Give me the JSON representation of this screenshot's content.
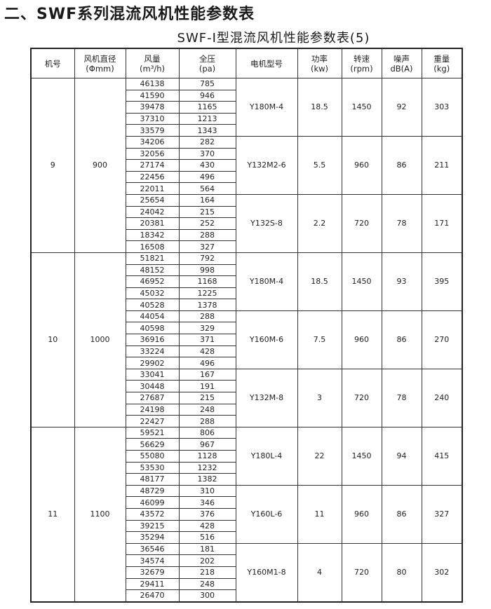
{
  "heading": "二、SWF系列混流风机性能参数表",
  "subheading": "SWF-Ⅰ型混流风机性能参数表(5)",
  "columns": [
    {
      "line1": "机号",
      "line2": ""
    },
    {
      "line1": "风机直径",
      "line2": "(Φmm)"
    },
    {
      "line1": "风量",
      "line2": "(m³/h)"
    },
    {
      "line1": "全压",
      "line2": "(pa)"
    },
    {
      "line1": "电机型号",
      "line2": ""
    },
    {
      "line1": "功率",
      "line2": "(kw)"
    },
    {
      "line1": "转速",
      "line2": "(rpm)"
    },
    {
      "line1": "噪声",
      "line2": "dB(A)"
    },
    {
      "line1": "重量",
      "line2": "(kg)"
    }
  ],
  "fans": [
    {
      "number": "9",
      "diameter": "900",
      "motors": [
        {
          "model": "Y180M-4",
          "power": "18.5",
          "speed": "1450",
          "noise": "92",
          "weight": "303",
          "points": [
            [
              "46138",
              "785"
            ],
            [
              "41590",
              "946"
            ],
            [
              "39478",
              "1165"
            ],
            [
              "37310",
              "1213"
            ],
            [
              "33579",
              "1343"
            ]
          ]
        },
        {
          "model": "Y132M2-6",
          "power": "5.5",
          "speed": "960",
          "noise": "86",
          "weight": "211",
          "points": [
            [
              "34206",
              "282"
            ],
            [
              "32056",
              "370"
            ],
            [
              "27174",
              "430"
            ],
            [
              "22456",
              "496"
            ],
            [
              "22011",
              "564"
            ]
          ]
        },
        {
          "model": "Y132S-8",
          "power": "2.2",
          "speed": "720",
          "noise": "78",
          "weight": "171",
          "points": [
            [
              "25654",
              "164"
            ],
            [
              "24042",
              "215"
            ],
            [
              "20381",
              "252"
            ],
            [
              "18342",
              "288"
            ],
            [
              "16508",
              "327"
            ]
          ]
        }
      ]
    },
    {
      "number": "10",
      "diameter": "1000",
      "motors": [
        {
          "model": "Y180M-4",
          "power": "18.5",
          "speed": "1450",
          "noise": "93",
          "weight": "395",
          "points": [
            [
              "51821",
              "792"
            ],
            [
              "48152",
              "998"
            ],
            [
              "46952",
              "1168"
            ],
            [
              "45032",
              "1225"
            ],
            [
              "40528",
              "1378"
            ]
          ]
        },
        {
          "model": "Y160M-6",
          "power": "7.5",
          "speed": "960",
          "noise": "86",
          "weight": "270",
          "points": [
            [
              "44054",
              "288"
            ],
            [
              "40598",
              "329"
            ],
            [
              "36916",
              "371"
            ],
            [
              "33224",
              "428"
            ],
            [
              "29902",
              "496"
            ]
          ]
        },
        {
          "model": "Y132M-8",
          "power": "3",
          "speed": "720",
          "noise": "78",
          "weight": "240",
          "points": [
            [
              "33041",
              "167"
            ],
            [
              "30448",
              "191"
            ],
            [
              "27687",
              "215"
            ],
            [
              "24198",
              "248"
            ],
            [
              "22427",
              "288"
            ]
          ]
        }
      ]
    },
    {
      "number": "11",
      "diameter": "1100",
      "motors": [
        {
          "model": "Y180L-4",
          "power": "22",
          "speed": "1450",
          "noise": "94",
          "weight": "415",
          "points": [
            [
              "59521",
              "806"
            ],
            [
              "56629",
              "967"
            ],
            [
              "55080",
              "1128"
            ],
            [
              "53530",
              "1232"
            ],
            [
              "48177",
              "1382"
            ]
          ]
        },
        {
          "model": "Y160L-6",
          "power": "11",
          "speed": "960",
          "noise": "86",
          "weight": "327",
          "points": [
            [
              "48729",
              "310"
            ],
            [
              "46099",
              "346"
            ],
            [
              "43572",
              "376"
            ],
            [
              "39215",
              "428"
            ],
            [
              "35294",
              "516"
            ]
          ]
        },
        {
          "model": "Y160M1-8",
          "power": "4",
          "speed": "720",
          "noise": "80",
          "weight": "302",
          "points": [
            [
              "36546",
              "181"
            ],
            [
              "34574",
              "202"
            ],
            [
              "32679",
              "218"
            ],
            [
              "29411",
              "248"
            ],
            [
              "26470",
              "300"
            ]
          ]
        }
      ]
    }
  ]
}
